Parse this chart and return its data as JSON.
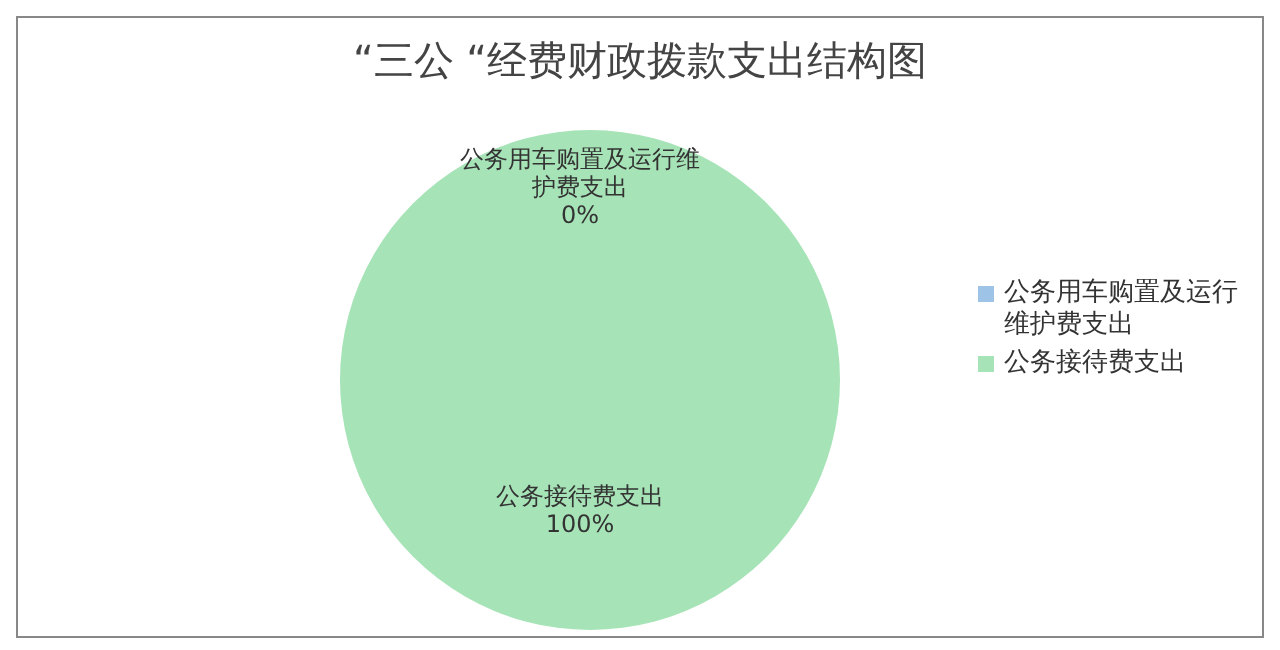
{
  "chart_data": {
    "type": "pie",
    "title": "“三公 “经费财政拨款支出结构图",
    "categories": [
      "公务用车购置及运行维护费支出",
      "公务接待费支出"
    ],
    "values": [
      0,
      100
    ],
    "value_labels": [
      "0%",
      "100%"
    ],
    "colors": [
      "#9dc3e6",
      "#a6e3b7"
    ],
    "legend": "right"
  }
}
